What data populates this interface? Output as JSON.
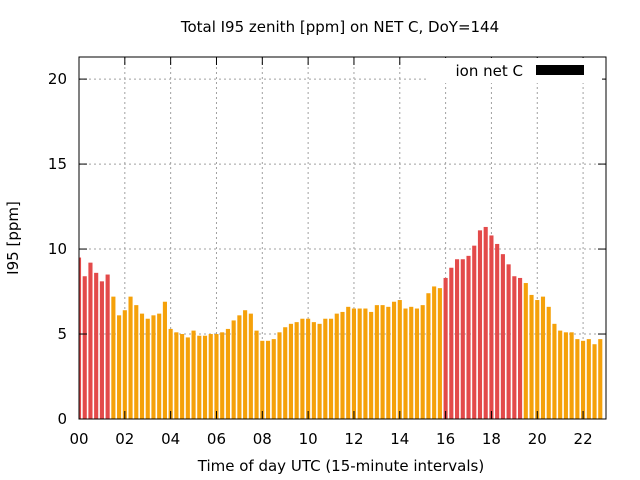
{
  "chart_data": {
    "type": "bar",
    "title": "Total I95 zenith [ppm] on NET C, DoY=144",
    "xlabel": "Time of day UTC (15-minute intervals)",
    "ylabel": "I95 [ppm]",
    "xlim": [
      0,
      23
    ],
    "ylim": [
      0,
      21.3
    ],
    "yticks": [
      0,
      5,
      10,
      15,
      20
    ],
    "xticks": [
      "00",
      "02",
      "04",
      "06",
      "08",
      "10",
      "12",
      "14",
      "16",
      "18",
      "20",
      "22"
    ],
    "xtick_values": [
      0,
      2,
      4,
      6,
      8,
      10,
      12,
      14,
      16,
      18,
      20,
      22
    ],
    "grid": true,
    "legend": {
      "label": "ion net C",
      "color": "#000000",
      "placement": "top-right"
    },
    "colors": {
      "high": "#e34a4a",
      "normal": "#f5a10a"
    },
    "values": [
      9.5,
      8.4,
      9.2,
      8.6,
      8.1,
      8.5,
      7.2,
      6.1,
      6.4,
      7.2,
      6.7,
      6.2,
      5.9,
      6.1,
      6.2,
      6.9,
      5.3,
      5.1,
      5.0,
      4.8,
      5.2,
      4.9,
      4.9,
      5.0,
      5.0,
      5.1,
      5.3,
      5.8,
      6.1,
      6.4,
      6.2,
      5.2,
      4.6,
      4.6,
      4.7,
      5.1,
      5.4,
      5.6,
      5.7,
      5.9,
      5.9,
      5.7,
      5.6,
      5.9,
      5.9,
      6.2,
      6.3,
      6.6,
      6.5,
      6.5,
      6.5,
      6.3,
      6.7,
      6.7,
      6.6,
      6.9,
      7.0,
      6.5,
      6.6,
      6.5,
      6.7,
      7.4,
      7.8,
      7.7,
      8.3,
      8.9,
      9.4,
      9.4,
      9.6,
      10.2,
      11.1,
      11.3,
      10.8,
      10.3,
      9.7,
      9.1,
      8.4,
      8.3,
      8.0,
      7.3,
      7.0,
      7.2,
      6.6,
      5.6,
      5.2,
      5.1,
      5.1,
      4.7,
      4.6,
      4.7,
      4.4,
      4.7
    ],
    "high_flags": [
      1,
      1,
      1,
      1,
      1,
      1,
      0,
      0,
      0,
      0,
      0,
      0,
      0,
      0,
      0,
      0,
      0,
      0,
      0,
      0,
      0,
      0,
      0,
      0,
      0,
      0,
      0,
      0,
      0,
      0,
      0,
      0,
      0,
      0,
      0,
      0,
      0,
      0,
      0,
      0,
      0,
      0,
      0,
      0,
      0,
      0,
      0,
      0,
      0,
      0,
      0,
      0,
      0,
      0,
      0,
      0,
      0,
      0,
      0,
      0,
      0,
      0,
      0,
      0,
      1,
      1,
      1,
      1,
      1,
      1,
      1,
      1,
      1,
      1,
      1,
      1,
      1,
      1,
      0,
      0,
      0,
      0,
      0,
      0,
      0,
      0,
      0,
      0,
      0,
      0,
      0,
      0
    ]
  }
}
